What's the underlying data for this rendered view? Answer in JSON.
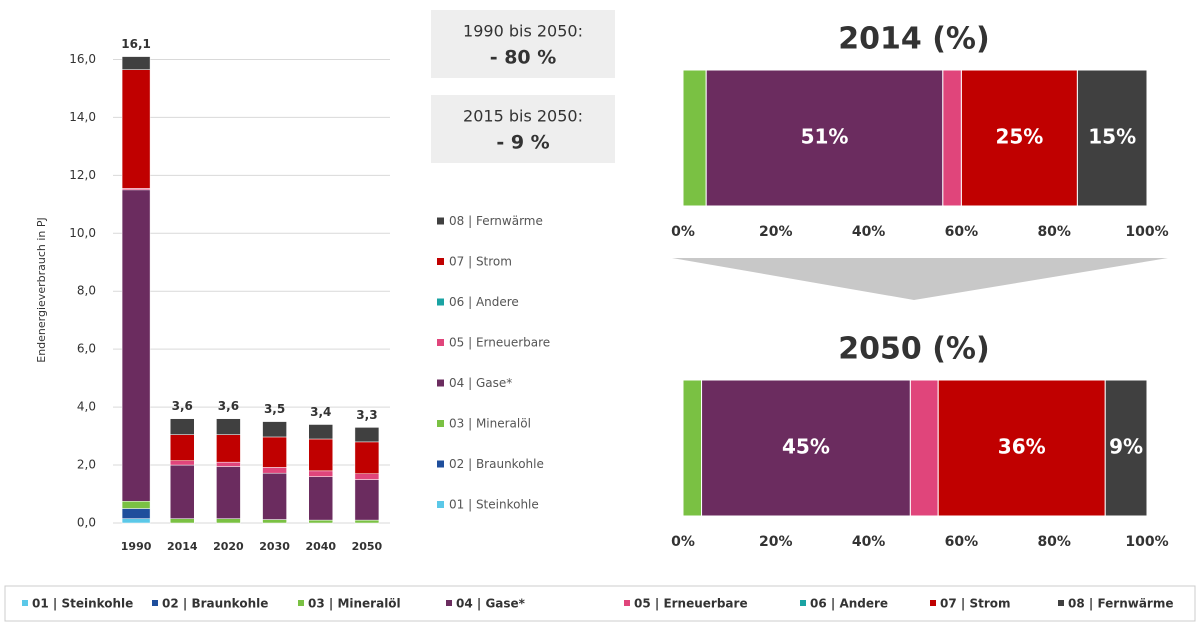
{
  "chart_data": [
    {
      "type": "stacked_bar",
      "y_label": "Endenergieverbrauch in PJ",
      "categories": [
        "1990",
        "2014",
        "2020",
        "2030",
        "2040",
        "2050"
      ],
      "series": [
        {
          "name": "01 | Steinkohle",
          "color": "#5bc8e8",
          "values": [
            0.15,
            0,
            0,
            0,
            0,
            0
          ]
        },
        {
          "name": "02 | Braunkohle",
          "color": "#1f4e9c",
          "values": [
            0.35,
            0,
            0,
            0,
            0,
            0
          ]
        },
        {
          "name": "03 | Mineralöl",
          "color": "#7ac143",
          "values": [
            0.25,
            0.15,
            0.15,
            0.12,
            0.1,
            0.1
          ]
        },
        {
          "name": "04 | Gase*",
          "color": "#6b2c5f",
          "values": [
            10.75,
            1.85,
            1.8,
            1.6,
            1.5,
            1.4
          ]
        },
        {
          "name": "05 | Erneuerbare",
          "color": "#e0457b",
          "values": [
            0.05,
            0.15,
            0.15,
            0.2,
            0.2,
            0.2
          ]
        },
        {
          "name": "06 | Andere",
          "color": "#1aa3a3",
          "values": [
            0,
            0,
            0,
            0,
            0,
            0
          ]
        },
        {
          "name": "07 | Strom",
          "color": "#c00000",
          "values": [
            4.1,
            0.9,
            0.95,
            1.05,
            1.1,
            1.1
          ]
        },
        {
          "name": "08 | Fernwärme",
          "color": "#404040",
          "values": [
            0.45,
            0.55,
            0.55,
            0.53,
            0.5,
            0.5
          ]
        }
      ],
      "totals": {
        "values": [
          16.1,
          3.6,
          3.6,
          3.5,
          3.4,
          3.3
        ],
        "value_labels": [
          "16,1",
          "3,6",
          "3,6",
          "3,5",
          "3,4",
          "3,3"
        ]
      },
      "ylim": [
        0,
        16.5
      ],
      "yticks": [
        {
          "value": 0,
          "label": "0,0"
        },
        {
          "value": 2,
          "label": "2,0"
        },
        {
          "value": 4,
          "label": "4,0"
        },
        {
          "value": 6,
          "label": "6,0"
        },
        {
          "value": 8,
          "label": "8,0"
        },
        {
          "value": 10,
          "label": "10,0"
        },
        {
          "value": 12,
          "label": "12,0"
        },
        {
          "value": 14,
          "label": "14,0"
        },
        {
          "value": 16,
          "label": "16,0"
        }
      ],
      "grid": true
    },
    {
      "type": "stacked_hbar",
      "title": "2014 (%)",
      "values": [
        0,
        0,
        5,
        51,
        4,
        0,
        25,
        15
      ],
      "value_labels": [
        null,
        null,
        null,
        "51%",
        null,
        null,
        "25%",
        "15%"
      ],
      "xlim": [
        0,
        100
      ],
      "xticks": [
        {
          "value": 0,
          "label": "0%"
        },
        {
          "value": 20,
          "label": "20%"
        },
        {
          "value": 40,
          "label": "40%"
        },
        {
          "value": 60,
          "label": "60%"
        },
        {
          "value": 80,
          "label": "80%"
        },
        {
          "value": 100,
          "label": "100%"
        }
      ]
    },
    {
      "type": "stacked_hbar",
      "title": "2050 (%)",
      "values": [
        0,
        0,
        4,
        45,
        6,
        0,
        36,
        9
      ],
      "value_labels": [
        null,
        null,
        null,
        "45%",
        null,
        null,
        "36%",
        "9%"
      ],
      "xlim": [
        0,
        100
      ],
      "xticks": [
        {
          "value": 0,
          "label": "0%"
        },
        {
          "value": 20,
          "label": "20%"
        },
        {
          "value": 40,
          "label": "40%"
        },
        {
          "value": 60,
          "label": "60%"
        },
        {
          "value": 80,
          "label": "80%"
        },
        {
          "value": 100,
          "label": "100%"
        }
      ]
    }
  ],
  "info_boxes": [
    {
      "period": "1990 bis 2050:",
      "change": "- 80 %"
    },
    {
      "period": "2015 bis 2050:",
      "change": "- 9 %"
    }
  ]
}
